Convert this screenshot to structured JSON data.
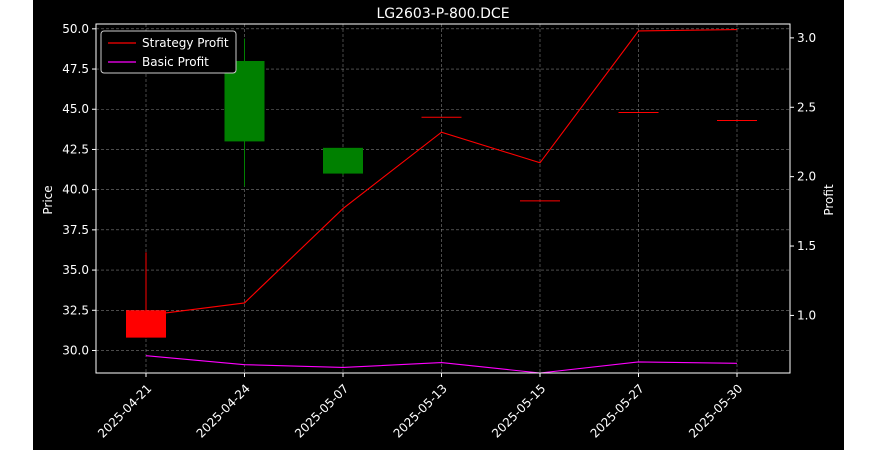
{
  "chart_data": {
    "type": "candlestick",
    "title": "LG2603-P-800.DCE",
    "categories": [
      "2025-04-21",
      "2025-04-24",
      "2025-05-07",
      "2025-05-13",
      "2025-05-15",
      "2025-05-27",
      "2025-05-30"
    ],
    "ylabel_left": "Price",
    "ylabel_right": "Profit",
    "ylim_left": [
      28.6,
      50.3
    ],
    "ylim_right": [
      0.585,
      3.1
    ],
    "yticks_left": [
      "30.0",
      "32.5",
      "35.0",
      "37.5",
      "40.0",
      "42.5",
      "45.0",
      "47.5",
      "50.0"
    ],
    "yticks_right": [
      "1.0",
      "1.5",
      "2.0",
      "2.5",
      "3.0"
    ],
    "grid": true,
    "legend_position": "top-left",
    "ohlc": [
      {
        "open": 32.5,
        "high": 36.1,
        "low": 30.8,
        "close": 30.8,
        "color": "#ff0000"
      },
      {
        "open": 43.0,
        "high": 49.4,
        "low": 40.2,
        "close": 48.0,
        "color": "#008000"
      },
      {
        "open": 41.0,
        "high": 42.6,
        "low": 40.9,
        "close": 42.6,
        "color": "#008000"
      },
      {
        "open": 44.5,
        "high": 44.5,
        "low": 44.5,
        "close": 44.5,
        "color": "#ff0000"
      },
      {
        "open": 39.3,
        "high": 39.3,
        "low": 39.3,
        "close": 39.3,
        "color": "#ff0000"
      },
      {
        "open": 44.8,
        "high": 44.8,
        "low": 44.8,
        "close": 44.8,
        "color": "#ff0000"
      },
      {
        "open": 44.3,
        "high": 44.3,
        "low": 44.3,
        "close": 44.3,
        "color": "#ff0000"
      }
    ],
    "series": [
      {
        "name": "Strategy Profit",
        "axis": "right",
        "color": "#ff0000",
        "values": [
          1.0,
          1.09,
          1.77,
          2.32,
          2.1,
          3.05,
          3.06
        ]
      },
      {
        "name": "Basic Profit",
        "axis": "right",
        "color": "#ff00ff",
        "values": [
          0.71,
          0.645,
          0.625,
          0.66,
          0.585,
          0.665,
          0.655
        ]
      }
    ]
  }
}
